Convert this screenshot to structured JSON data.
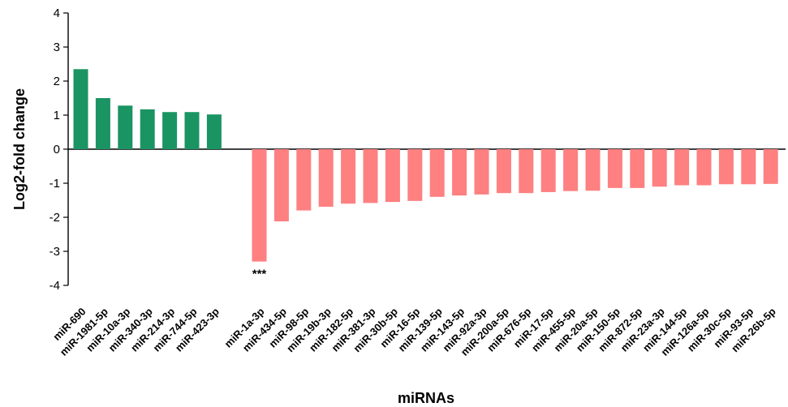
{
  "chart_data": {
    "type": "bar",
    "title": "",
    "xlabel": "miRNAs",
    "ylabel": "Log2-fold change",
    "ylim": [
      -4,
      4
    ],
    "yticks": [
      "4",
      "3",
      "2",
      "1",
      "0",
      "-1",
      "-2",
      "-3",
      "-4"
    ],
    "grid": false,
    "legend": "none",
    "colors": {
      "up": "#1a9463",
      "down": "#fe8081"
    },
    "series": [
      {
        "group": "up",
        "categories": [
          "miR-690",
          "miR-1981-5p",
          "miR-10a-3p",
          "miR-340-3p",
          "miR-214-3p",
          "miR-744-5p",
          "miR-423-3p"
        ],
        "values": [
          2.35,
          1.5,
          1.28,
          1.17,
          1.09,
          1.09,
          1.02
        ]
      },
      {
        "group": "down",
        "categories": [
          "miR-1a-3p",
          "miR-434-5p",
          "miR-98-5p",
          "miR-19b-3p",
          "miR-182-5p",
          "miR-381-3p",
          "miR-30b-5p",
          "miR-16-5p",
          "miR-139-5p",
          "miR-143-5p",
          "miR-92a-3p",
          "miR-200a-5p",
          "miR-676-5p",
          "miR-17-5p",
          "miR-455-5p",
          "miR-20a-5p",
          "miR-150-5p",
          "miR-872-5p",
          "miR-23a-3p",
          "miR-144-5p",
          "miR-126a-5p",
          "miR-30c-5p",
          "miR-93-5p",
          "miR-26b-5p"
        ],
        "values": [
          -3.3,
          -2.12,
          -1.8,
          -1.69,
          -1.6,
          -1.58,
          -1.55,
          -1.52,
          -1.4,
          -1.36,
          -1.33,
          -1.29,
          -1.29,
          -1.26,
          -1.23,
          -1.22,
          -1.14,
          -1.14,
          -1.1,
          -1.06,
          -1.06,
          -1.03,
          -1.03,
          -1.02
        ]
      }
    ],
    "annotations": [
      {
        "category": "miR-1a-3p",
        "text": "***"
      }
    ]
  }
}
